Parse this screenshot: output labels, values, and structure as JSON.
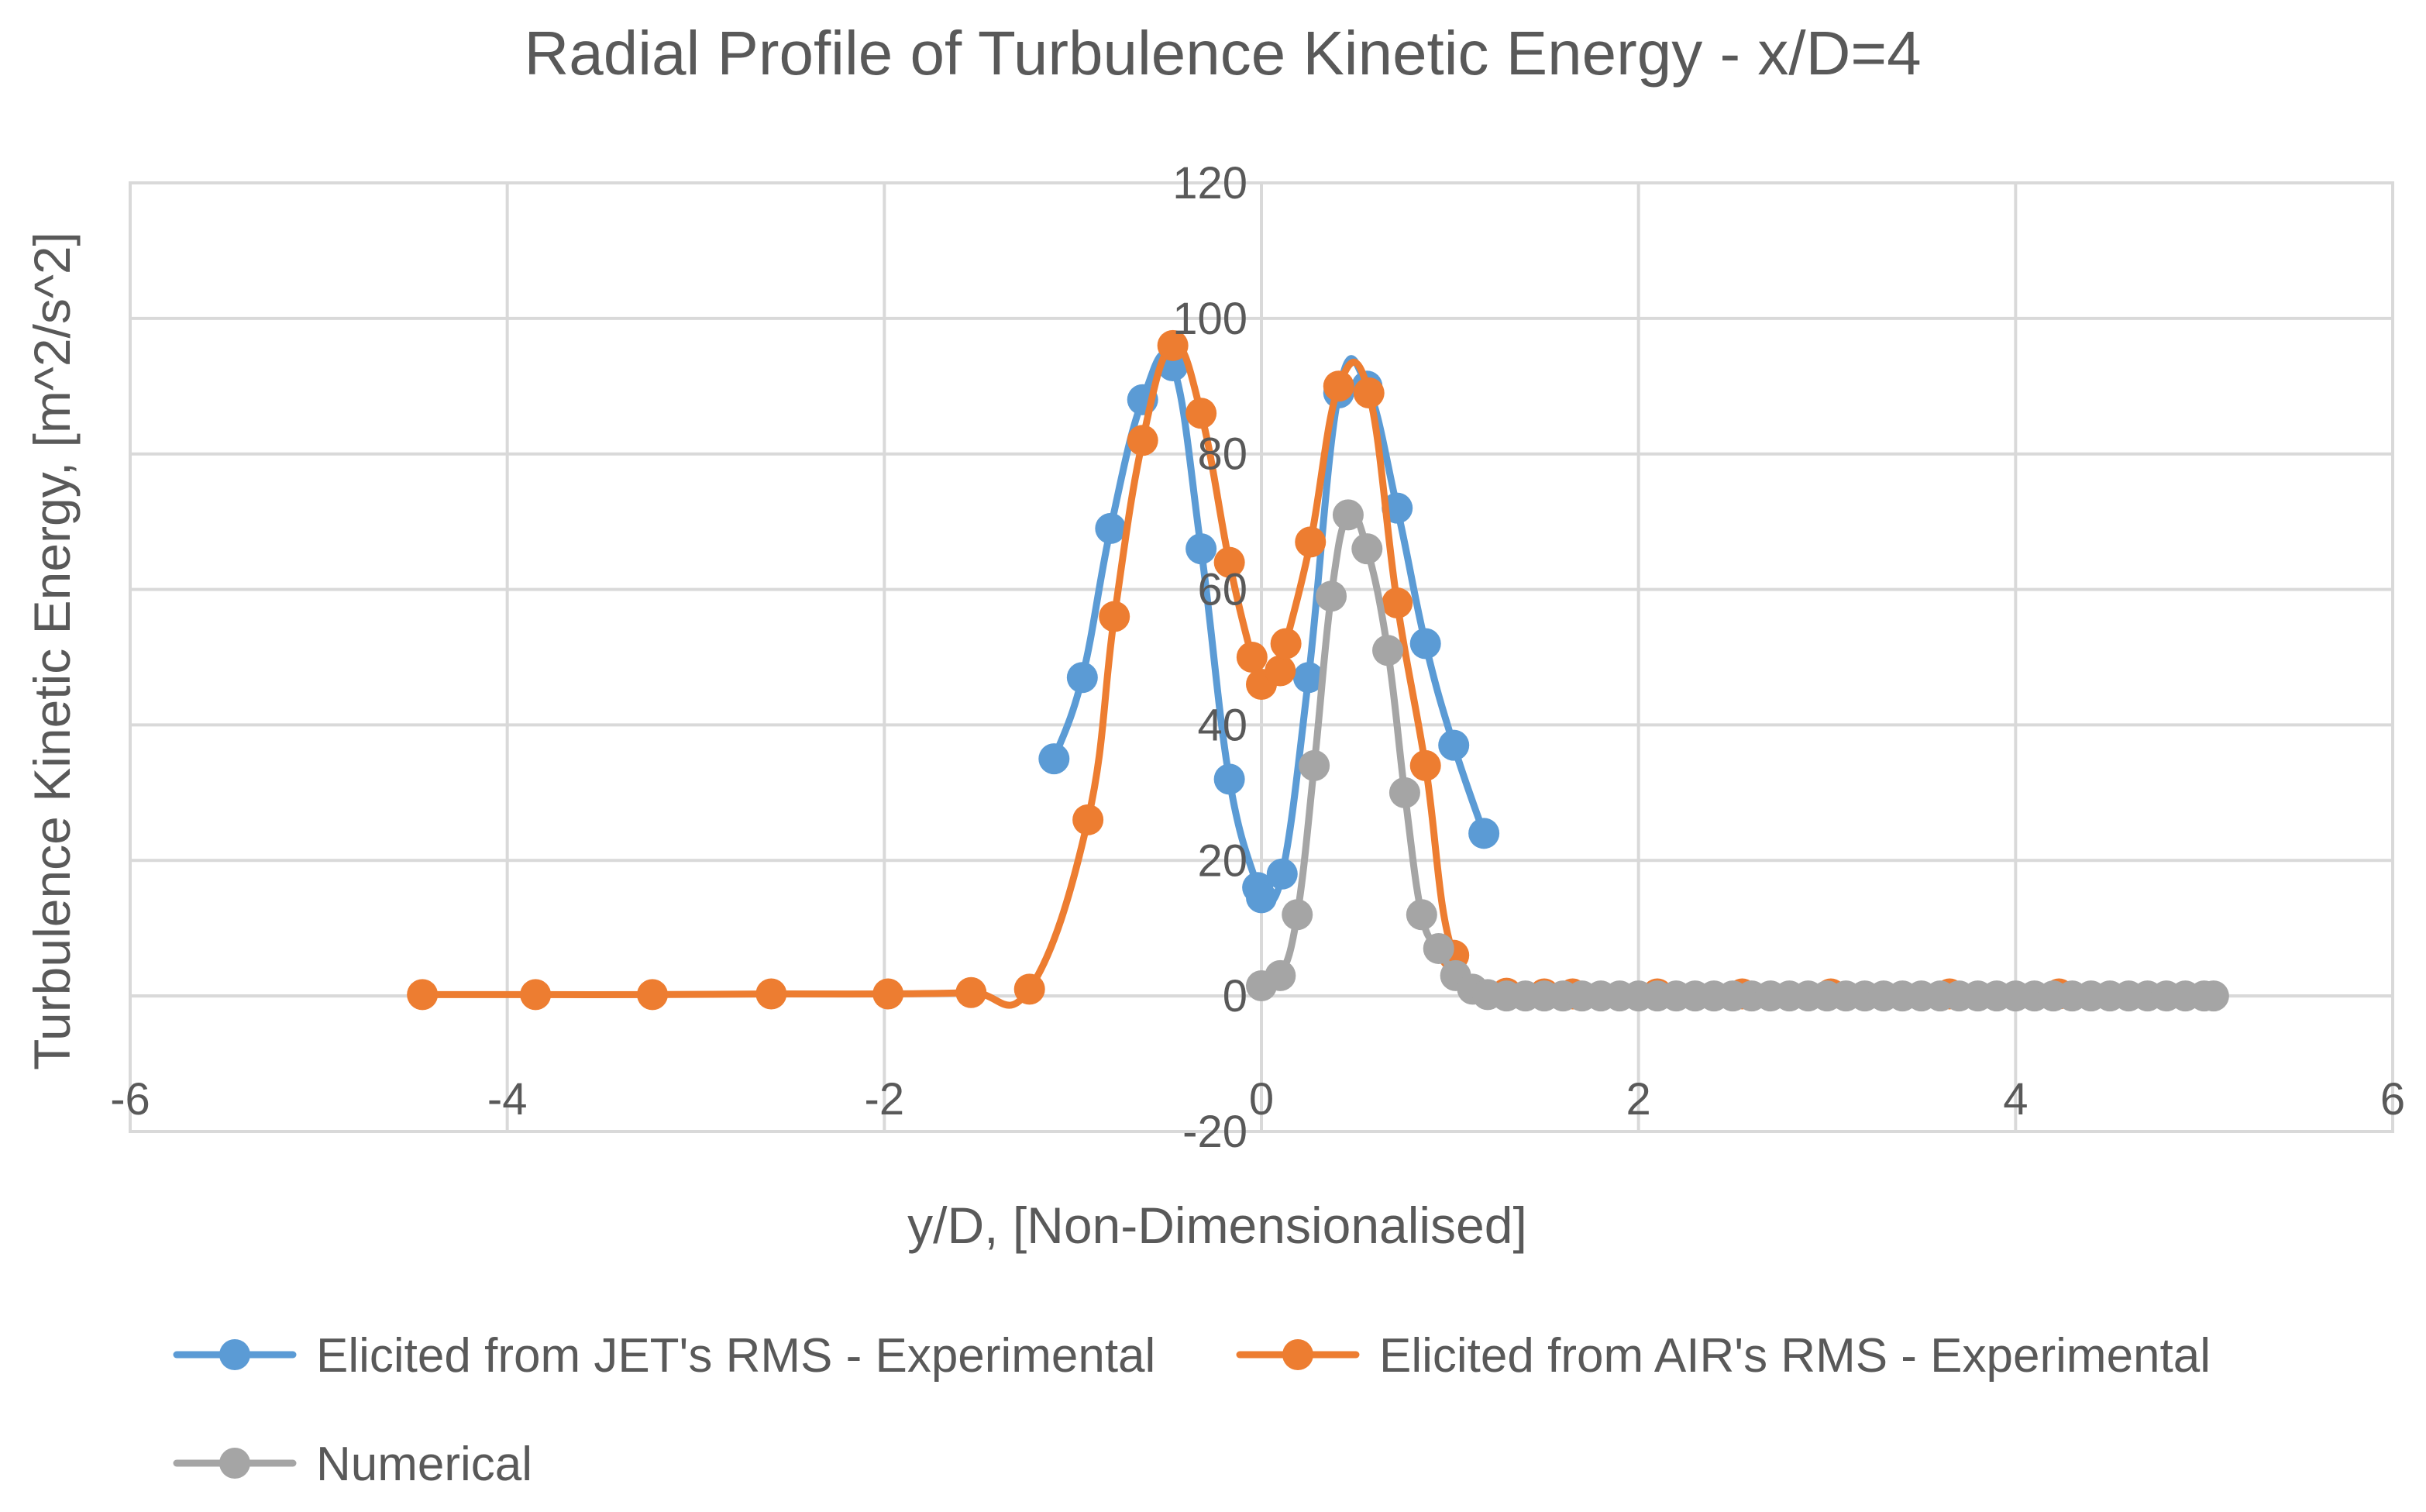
{
  "chart_data": {
    "type": "scatter",
    "title": "Radial Profile of Turbulence Kinetic Energy - x/D=4",
    "xlabel": "y/D, [Non-Dimensionalised]",
    "ylabel": "Turbulence Kinetic Energy, [m^2/s^2]",
    "xlim": [
      -6,
      6
    ],
    "ylim": [
      -20,
      120
    ],
    "x_ticks": [
      -6,
      -4,
      -2,
      0,
      2,
      4,
      6
    ],
    "y_ticks": [
      -20,
      0,
      20,
      40,
      60,
      80,
      100,
      120
    ],
    "x_tick_labels": [
      "-6",
      "-4",
      "-2",
      "0",
      "2",
      "4",
      "6"
    ],
    "y_tick_labels": [
      "-20",
      "0",
      "20",
      "40",
      "60",
      "80",
      "100",
      "120"
    ],
    "grid": true,
    "legend_position": "bottom",
    "series": [
      {
        "name": "Elicited from JET's RMS - Experimental",
        "color": "#5b9bd5",
        "x": [
          -1.1,
          -0.95,
          -0.8,
          -0.63,
          -0.47,
          -0.32,
          -0.17,
          -0.02,
          0.0,
          0.11,
          0.25,
          0.41,
          0.56,
          0.72,
          0.87,
          1.02,
          1.18
        ],
        "y": [
          35,
          47,
          69,
          88,
          93,
          66,
          32,
          16,
          14.5,
          18,
          47,
          89,
          90,
          72,
          52,
          37,
          24
        ]
      },
      {
        "name": "Elicited from AIR's RMS - Experimental",
        "color": "#ed7d31",
        "x": [
          -4.45,
          -3.85,
          -3.23,
          -2.6,
          -1.98,
          -1.54,
          -1.23,
          -0.92,
          -0.78,
          -0.63,
          -0.47,
          -0.32,
          -0.17,
          -0.05,
          0.0,
          0.1,
          0.13,
          0.26,
          0.41,
          0.57,
          0.72,
          0.87,
          1.02,
          1.3,
          1.5,
          1.65,
          2.1,
          2.55,
          3.02,
          3.65,
          4.23
        ],
        "y": [
          0.2,
          0.2,
          0.2,
          0.3,
          0.3,
          0.5,
          1.0,
          26,
          56,
          82,
          96,
          86,
          64,
          50,
          46,
          48,
          52,
          67,
          90,
          89,
          58,
          34,
          6,
          0.4,
          0.3,
          0.3,
          0.3,
          0.3,
          0.3,
          0.3,
          0.3
        ]
      },
      {
        "name": "Numerical",
        "color": "#a5a5a5",
        "x": [
          0.0,
          0.1,
          0.19,
          0.28,
          0.37,
          0.46,
          0.56,
          0.67,
          0.76,
          0.85,
          0.94,
          1.03,
          1.12,
          1.2,
          1.3,
          1.4,
          1.5,
          1.6,
          1.7,
          1.8,
          1.9,
          2.0,
          2.1,
          2.2,
          2.3,
          2.4,
          2.5,
          2.6,
          2.7,
          2.8,
          2.9,
          3.0,
          3.1,
          3.2,
          3.3,
          3.4,
          3.5,
          3.6,
          3.7,
          3.8,
          3.9,
          4.0,
          4.1,
          4.2,
          4.3,
          4.4,
          4.5,
          4.6,
          4.7,
          4.8,
          4.9,
          5.0,
          5.05
        ],
        "y": [
          1.5,
          3,
          12,
          34,
          59,
          71,
          66,
          51,
          30,
          12,
          7,
          3,
          1,
          0.2,
          0,
          0,
          0,
          0,
          0,
          0,
          0,
          0,
          0,
          0,
          0,
          0,
          0,
          0,
          0,
          0,
          0,
          0,
          0,
          0,
          0,
          0,
          0,
          0,
          0,
          0,
          0,
          0,
          0,
          0,
          0,
          0,
          0,
          0,
          0,
          0,
          0,
          0,
          0
        ]
      }
    ]
  }
}
